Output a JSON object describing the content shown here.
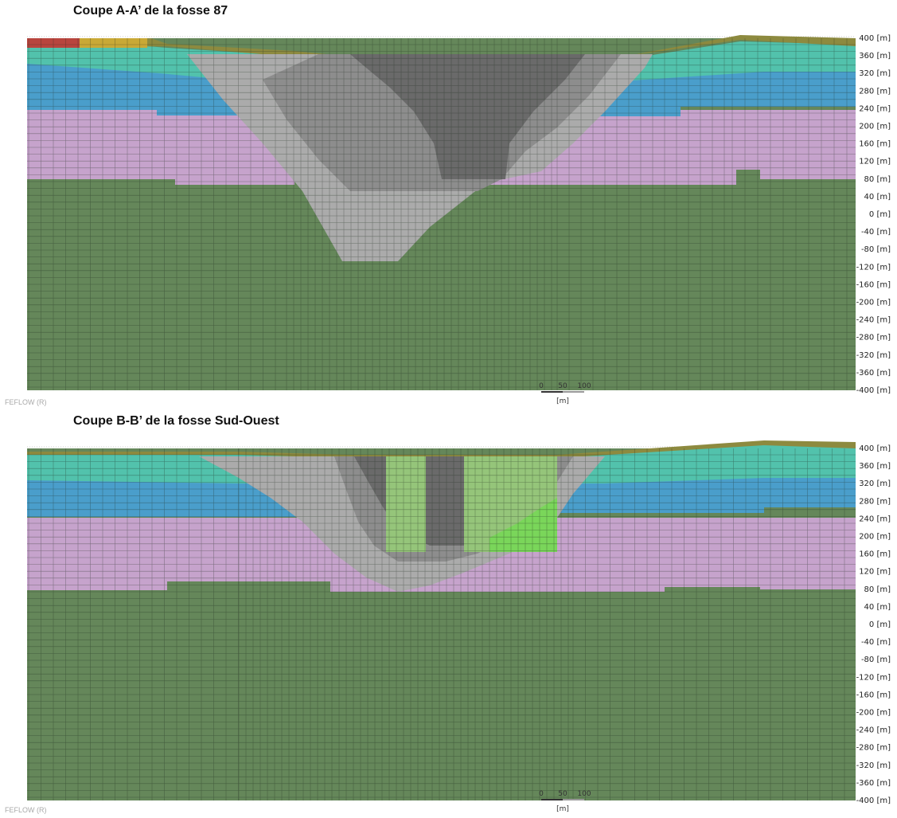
{
  "software": "FEFLOW (R)",
  "panels": [
    {
      "id": "a",
      "title": "Coupe A-A’ de la fosse 87",
      "footer_brand": "FEFLOW (R)"
    },
    {
      "id": "b",
      "title": "Coupe B-B’ de la fosse Sud-Ouest",
      "footer_brand": "FEFLOW (R)"
    }
  ],
  "axis": {
    "unit": "[m]",
    "ticks": [
      400,
      360,
      320,
      280,
      240,
      200,
      160,
      120,
      80,
      40,
      0,
      -40,
      -80,
      -120,
      -160,
      -200,
      -240,
      -280,
      -320,
      -360,
      -400
    ]
  },
  "scale_bar": {
    "labels": [
      "0",
      "50",
      "100"
    ],
    "unit": "[m]"
  },
  "colors": {
    "bedrock": "#65875a",
    "pink": "#c6a3cc",
    "blue": "#4a9ecb",
    "teal": "#52c2ac",
    "olive": "#8d8a3f",
    "brown": "#8a4a3a",
    "red": "#b8453e",
    "yellow": "#c9a936",
    "grey_dark": "#6a6a6a",
    "grey_mid": "#8d8d8d",
    "grey_light": "#ababab",
    "light_green": "#95c57a",
    "bright_green": "#7ad65a",
    "mesh": "#1e2a1e"
  }
}
